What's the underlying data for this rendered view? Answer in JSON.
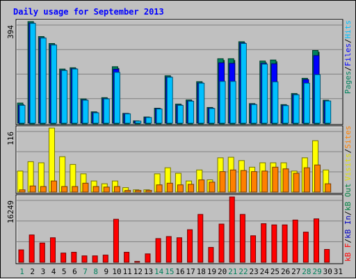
{
  "title": "Daily usage for September 2013",
  "colors": {
    "background": "#c0c0c0",
    "title": "#0000ff",
    "hits": "#00c0ff",
    "files": "#0000ff",
    "pages": "#00805c",
    "visits": "#ffff00",
    "sites": "#ff8000",
    "kbout": "#008040",
    "kbin": "#0000c0",
    "kbf": "#ff0000",
    "weekend": "#00805c",
    "weekday": "#000000"
  },
  "legends": {
    "top": [
      {
        "text": "Pages",
        "color": "#00805c"
      },
      {
        "text": "/",
        "color": "#000000"
      },
      {
        "text": "Files",
        "color": "#0000ff"
      },
      {
        "text": "/",
        "color": "#000000"
      },
      {
        "text": "Hits",
        "color": "#00c0ff"
      }
    ],
    "middle": [
      {
        "text": "Visits",
        "color": "#e0e000"
      },
      {
        "text": "/",
        "color": "#000000"
      },
      {
        "text": "Sites",
        "color": "#ff8000"
      }
    ],
    "bottom": [
      {
        "text": "kB F",
        "color": "#ff0000"
      },
      {
        "text": "/",
        "color": "#000000"
      },
      {
        "text": "kB In",
        "color": "#0000c0"
      },
      {
        "text": "/",
        "color": "#000000"
      },
      {
        "text": "kB Out",
        "color": "#008040"
      }
    ]
  },
  "chart_data": [
    {
      "type": "bar",
      "panel": "top",
      "ymax_label": "394",
      "ylim": [
        0,
        394
      ],
      "categories": [
        "1",
        "2",
        "3",
        "4",
        "5",
        "6",
        "7",
        "8",
        "9",
        "10",
        "11",
        "12",
        "13",
        "14",
        "15",
        "16",
        "17",
        "18",
        "19",
        "20",
        "21",
        "22",
        "23",
        "24",
        "25",
        "26",
        "27",
        "28",
        "29",
        "30",
        "31"
      ],
      "weekend_days": [
        "1",
        "7",
        "8",
        "14",
        "15",
        "21",
        "22",
        "28",
        "29"
      ],
      "series": [
        {
          "name": "Pages",
          "values": [
            78,
            394,
            336,
            309,
            210,
            215,
            94,
            44,
            99,
            219,
            38,
            9,
            24,
            58,
            184,
            74,
            90,
            161,
            61,
            250,
            250,
            316,
            76,
            241,
            245,
            72,
            115,
            174,
            282,
            89,
            0
          ]
        },
        {
          "name": "Files",
          "values": [
            70,
            388,
            331,
            304,
            205,
            211,
            90,
            41,
            95,
            209,
            37,
            8,
            22,
            56,
            179,
            70,
            86,
            156,
            58,
            234,
            232,
            311,
            73,
            232,
            230,
            69,
            111,
            169,
            262,
            86,
            0
          ]
        },
        {
          "name": "Hits",
          "values": [
            69,
            387,
            330,
            303,
            204,
            210,
            89,
            40,
            94,
            197,
            36,
            8,
            22,
            55,
            178,
            69,
            85,
            155,
            57,
            162,
            162,
            309,
            72,
            229,
            160,
            68,
            110,
            155,
            188,
            86,
            0
          ]
        }
      ]
    },
    {
      "type": "bar",
      "panel": "middle",
      "ymax_label": "116",
      "ylim": [
        0,
        116
      ],
      "categories": [
        "1",
        "2",
        "3",
        "4",
        "5",
        "6",
        "7",
        "8",
        "9",
        "10",
        "11",
        "12",
        "13",
        "14",
        "15",
        "16",
        "17",
        "18",
        "19",
        "20",
        "21",
        "22",
        "23",
        "24",
        "25",
        "26",
        "27",
        "28",
        "29",
        "30",
        "31"
      ],
      "series": [
        {
          "name": "Visits",
          "values": [
            38,
            55,
            53,
            116,
            64,
            50,
            33,
            20,
            15,
            20,
            8,
            4,
            4,
            33,
            44,
            34,
            20,
            40,
            22,
            62,
            63,
            57,
            45,
            53,
            53,
            53,
            38,
            62,
            93,
            40,
            0
          ]
        },
        {
          "name": "Sites",
          "values": [
            4,
            11,
            10,
            20,
            10,
            10,
            16,
            10,
            9,
            10,
            3,
            3,
            3,
            13,
            16,
            13,
            14,
            22,
            18,
            37,
            40,
            39,
            37,
            38,
            45,
            42,
            34,
            44,
            49,
            15,
            0
          ]
        }
      ]
    },
    {
      "type": "bar",
      "panel": "bottom",
      "ymax_label": "16249",
      "ylim": [
        0,
        16249
      ],
      "categories": [
        "1",
        "2",
        "3",
        "4",
        "5",
        "6",
        "7",
        "8",
        "9",
        "10",
        "11",
        "12",
        "13",
        "14",
        "15",
        "16",
        "17",
        "18",
        "19",
        "20",
        "21",
        "22",
        "23",
        "24",
        "25",
        "26",
        "27",
        "28",
        "29",
        "30",
        "31"
      ],
      "series": [
        {
          "name": "kB F",
          "values": [
            3100,
            6800,
            4800,
            6100,
            2300,
            2500,
            1600,
            1600,
            1800,
            10700,
            2500,
            220,
            2100,
            5900,
            6400,
            6100,
            8100,
            11900,
            3700,
            9500,
            16249,
            11900,
            6600,
            9600,
            9300,
            9300,
            10500,
            7500,
            10800,
            3200,
            0
          ]
        }
      ]
    }
  ]
}
